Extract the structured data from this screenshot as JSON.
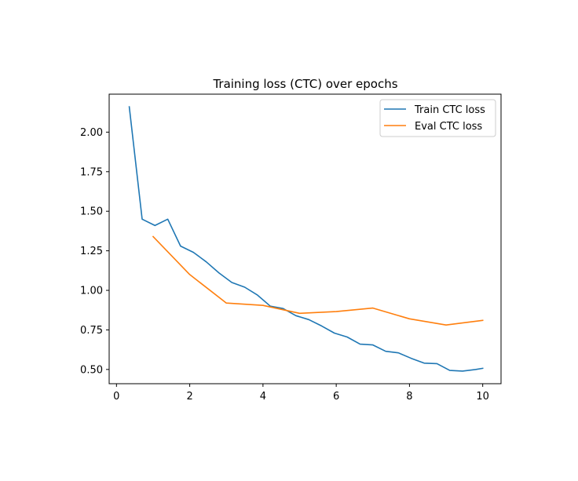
{
  "chart_data": {
    "type": "line",
    "title": "Training loss (CTC) over epochs",
    "xlabel": "",
    "ylabel": "",
    "xlim": [
      -0.2,
      10.5
    ],
    "ylim": [
      0.41,
      2.24
    ],
    "xticks": [
      0,
      2,
      4,
      6,
      8,
      10
    ],
    "yticks": [
      0.5,
      0.75,
      1.0,
      1.25,
      1.5,
      1.75,
      2.0
    ],
    "xtick_labels": [
      "0",
      "2",
      "4",
      "6",
      "8",
      "10"
    ],
    "ytick_labels": [
      "0.50",
      "0.75",
      "1.00",
      "1.25",
      "1.50",
      "1.75",
      "2.00"
    ],
    "grid": false,
    "legend_position": "upper right",
    "series": [
      {
        "name": "Train CTC loss",
        "color": "#1f77b4",
        "x": [
          0.35,
          0.7,
          1.05,
          1.4,
          1.75,
          2.1,
          2.45,
          2.8,
          3.15,
          3.5,
          3.85,
          4.2,
          4.55,
          4.9,
          5.25,
          5.6,
          5.95,
          6.3,
          6.65,
          7.0,
          7.35,
          7.7,
          8.05,
          8.4,
          8.75,
          9.1,
          9.45,
          9.8,
          10.0
        ],
        "y": [
          2.16,
          1.45,
          1.41,
          1.45,
          1.28,
          1.24,
          1.18,
          1.11,
          1.05,
          1.02,
          0.97,
          0.9,
          0.885,
          0.84,
          0.815,
          0.775,
          0.73,
          0.705,
          0.66,
          0.655,
          0.615,
          0.605,
          0.57,
          0.54,
          0.537,
          0.494,
          0.49,
          0.5,
          0.507
        ]
      },
      {
        "name": "Eval CTC loss",
        "color": "#ff7f0e",
        "x": [
          1,
          2,
          3,
          4,
          5,
          6,
          7,
          8,
          9,
          10
        ],
        "y": [
          1.34,
          1.1,
          0.92,
          0.905,
          0.855,
          0.866,
          0.888,
          0.82,
          0.781,
          0.81
        ]
      }
    ]
  }
}
